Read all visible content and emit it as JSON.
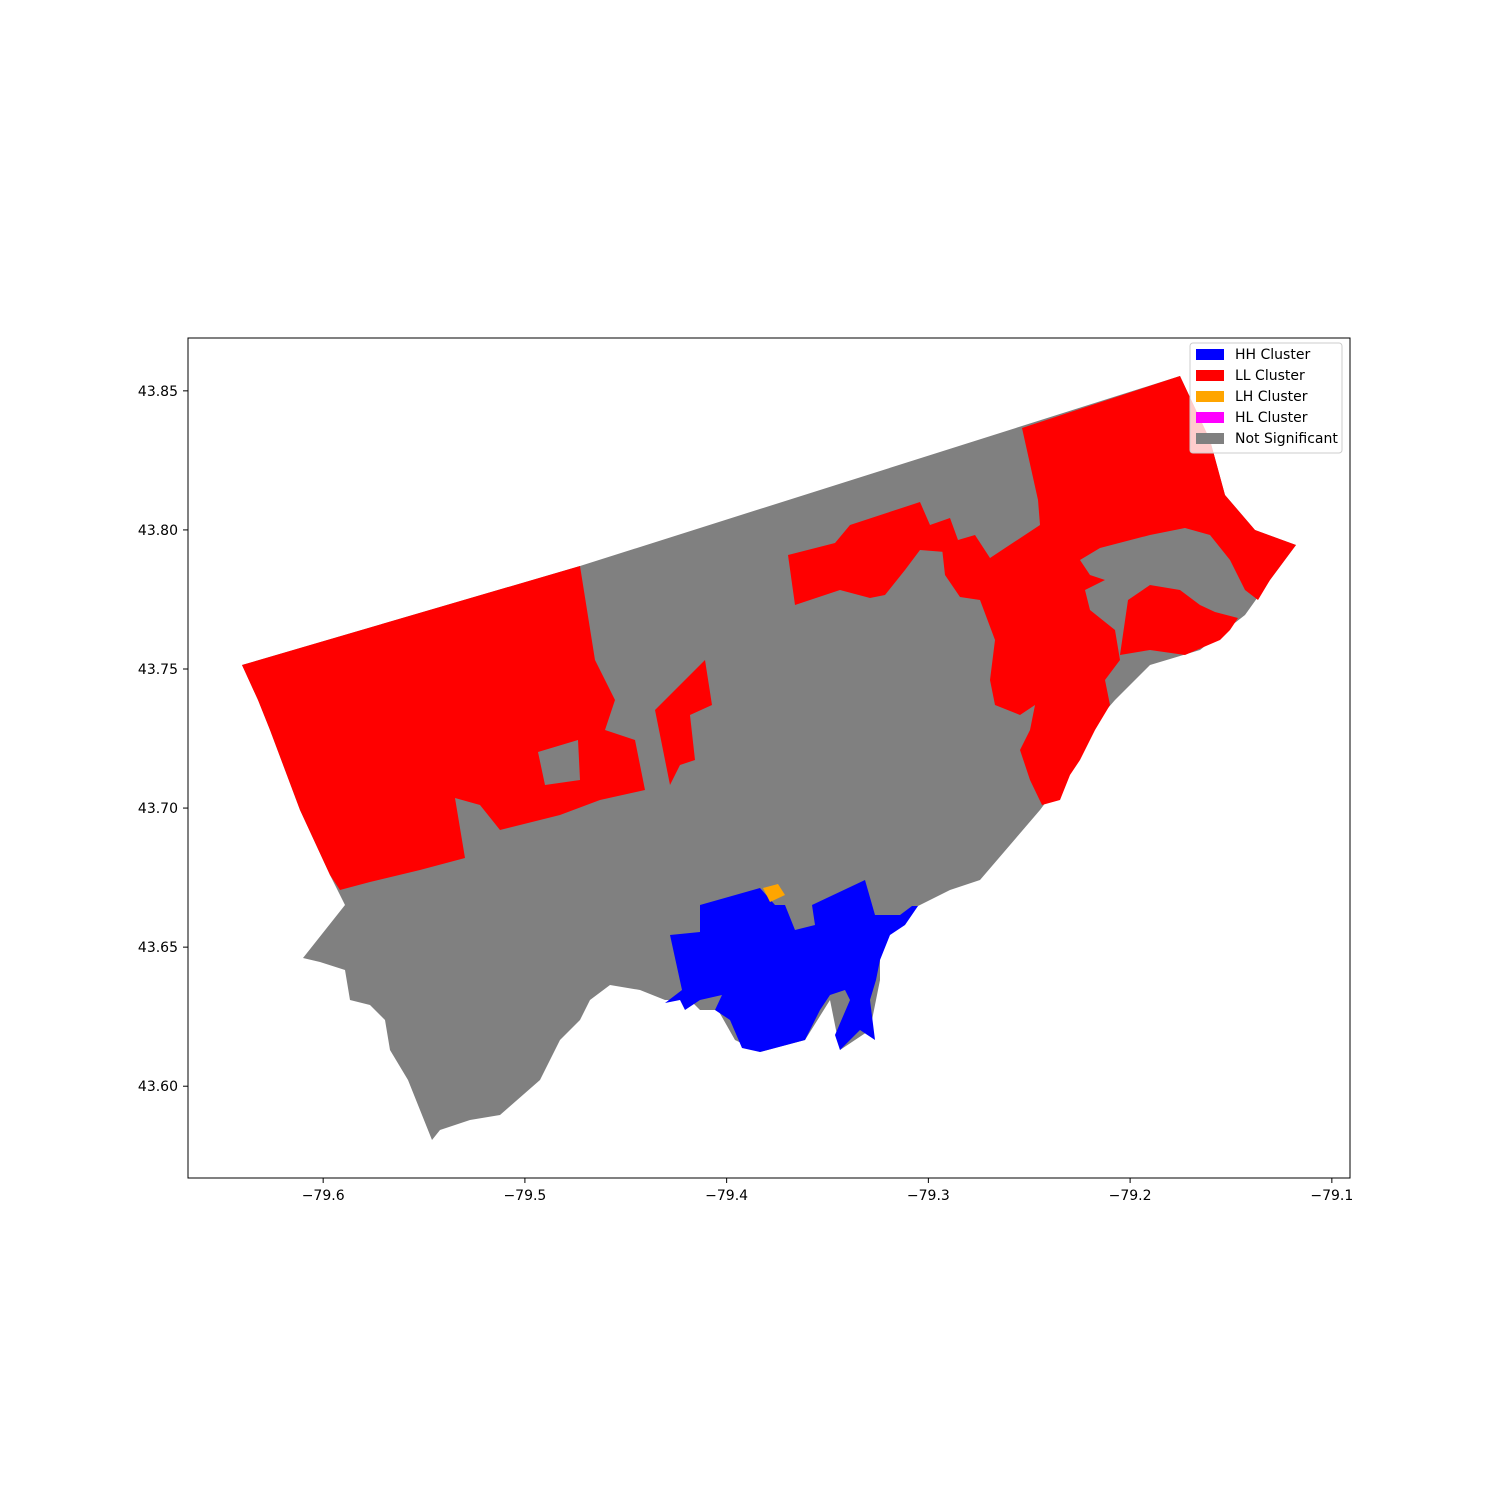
{
  "chart_data": {
    "type": "choropleth",
    "title": "",
    "xlabel": "",
    "ylabel": "",
    "xlim": [
      -79.667,
      -79.091
    ],
    "ylim": [
      43.567,
      43.869
    ],
    "xticks": [
      "−79.6",
      "−79.5",
      "−79.4",
      "−79.3",
      "−79.2",
      "−79.1"
    ],
    "xtick_values": [
      -79.6,
      -79.5,
      -79.4,
      -79.3,
      -79.2,
      -79.1
    ],
    "yticks": [
      "43.60",
      "43.65",
      "43.70",
      "43.75",
      "43.80",
      "43.85"
    ],
    "ytick_values": [
      43.6,
      43.65,
      43.7,
      43.75,
      43.8,
      43.85
    ],
    "legend_location": "upper right",
    "categories": [
      {
        "label": "HH Cluster",
        "color": "#0000ff"
      },
      {
        "label": "LL Cluster",
        "color": "#ff0000"
      },
      {
        "label": "LH Cluster",
        "color": "#ffa500"
      },
      {
        "label": "HL Cluster",
        "color": "#ff00ff"
      },
      {
        "label": "Not Significant",
        "color": "#808080"
      }
    ],
    "grid": false
  }
}
